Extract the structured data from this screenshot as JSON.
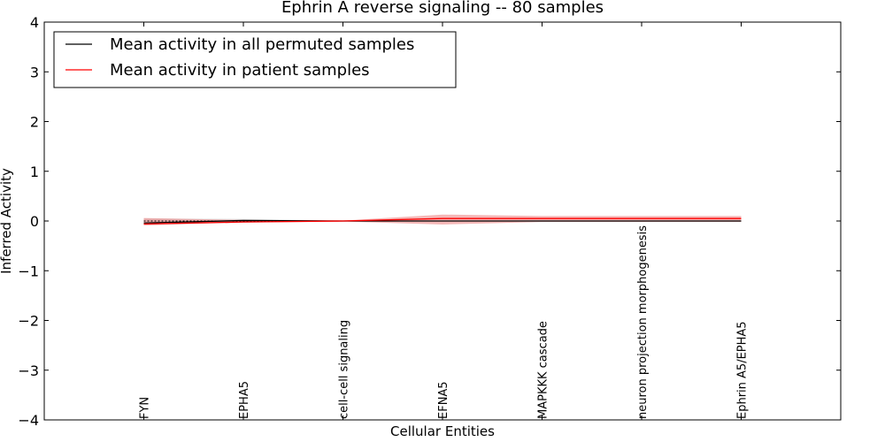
{
  "chart_data": {
    "type": "line",
    "title": "Ephrin A  reverse signaling -- 80 samples",
    "xlabel": "Cellular Entities",
    "ylabel": "Inferred Activity",
    "ylim": [
      -4,
      4
    ],
    "yticks": [
      "4",
      "3",
      "2",
      "1",
      "0",
      "−1",
      "−2",
      "−3",
      "−4"
    ],
    "ytick_values": [
      4,
      3,
      2,
      1,
      0,
      -1,
      -2,
      -3,
      -4
    ],
    "categories": [
      "FYN",
      "EPHA5",
      "cell-cell signaling",
      "EFNA5",
      "MAPKKK cascade",
      "neuron projection morphogenesis",
      "Ephrin A5/EPHA5"
    ],
    "grid": false,
    "legend_position": "top-left",
    "series": [
      {
        "name": "Mean activity in all permuted samples",
        "color": "#000000",
        "values": [
          -0.04,
          0.01,
          0.0,
          0.0,
          0.0,
          0.0,
          0.0
        ],
        "band_low": [
          -0.05,
          -0.01,
          -0.01,
          -0.01,
          -0.01,
          -0.01,
          -0.01
        ],
        "band_high": [
          0.05,
          0.04,
          0.01,
          0.01,
          0.01,
          0.01,
          0.01
        ],
        "band_color": "#bbbbbb",
        "dash_baseline": true
      },
      {
        "name": "Mean activity in patient samples",
        "color": "#ff0000",
        "values": [
          -0.06,
          -0.02,
          0.0,
          0.05,
          0.05,
          0.05,
          0.05
        ],
        "band_low": [
          -0.09,
          -0.03,
          -0.01,
          -0.07,
          -0.02,
          -0.02,
          -0.02
        ],
        "band_high": [
          0.06,
          0.02,
          0.01,
          0.13,
          0.1,
          0.1,
          0.1
        ],
        "band_color": "#ee8888"
      }
    ]
  }
}
